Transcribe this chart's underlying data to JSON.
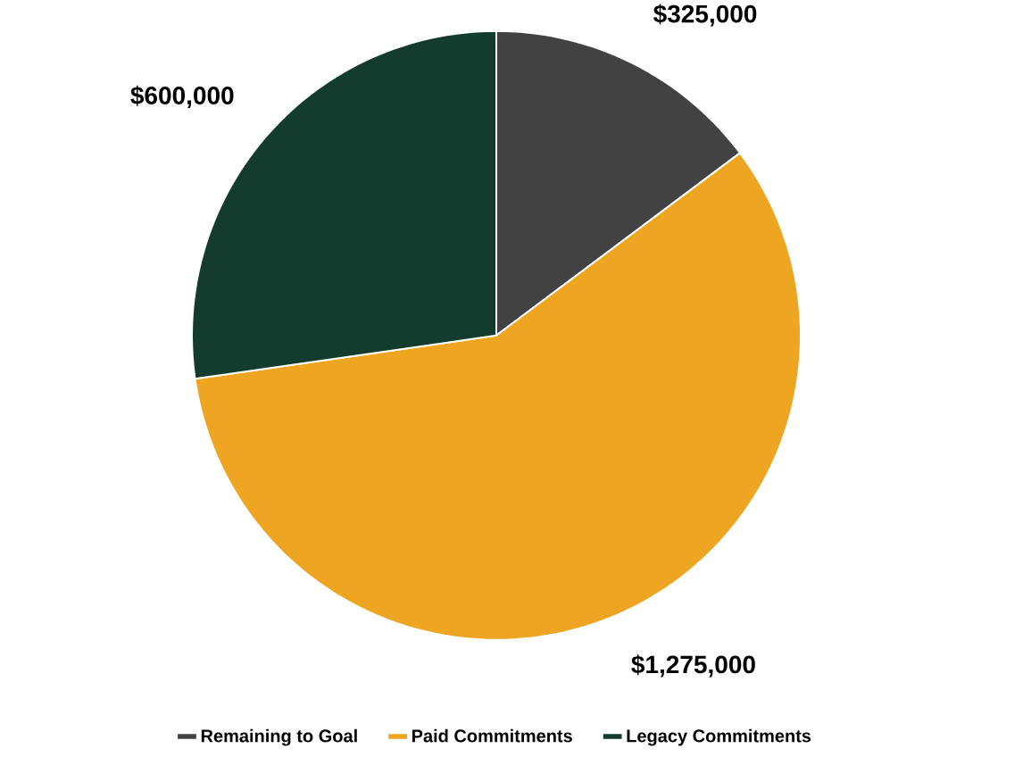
{
  "chart_data": {
    "type": "pie",
    "categories": [
      "Remaining to Goal",
      "Paid Commitments",
      "Legacy Commitments"
    ],
    "values": [
      325000,
      1275000,
      600000
    ],
    "colors": [
      "#424242",
      "#eda522",
      "#133c2f"
    ],
    "value_labels": [
      "$325,000",
      "$1,275,000",
      "$600,000"
    ],
    "legend": "bottom"
  }
}
